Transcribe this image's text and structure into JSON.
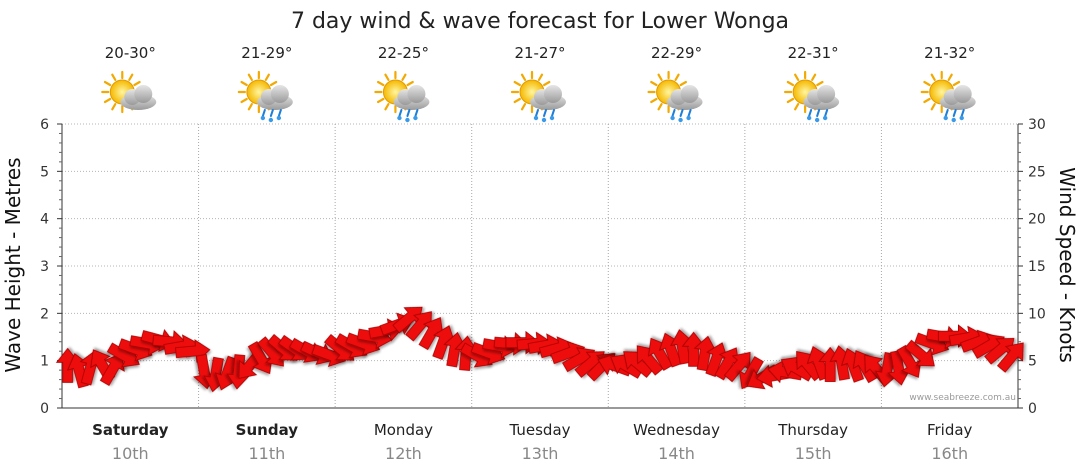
{
  "chart_data": {
    "type": "line",
    "title": "7 day wind & wave forecast for Lower Wonga",
    "ylabel_left": "Wave Height - Metres",
    "ylabel_right": "Wind Speed - Knots",
    "ylim_left": [
      0,
      6
    ],
    "ylim_right": [
      0,
      30
    ],
    "yticks_left": [
      "0",
      "1",
      "2",
      "3",
      "4",
      "5",
      "6"
    ],
    "yticks_right": [
      "0",
      "5",
      "10",
      "15",
      "20",
      "25",
      "30"
    ],
    "grid": true,
    "days": [
      {
        "day": "Saturday",
        "date": "10th",
        "temp": "20-30°",
        "icon": "partly-cloudy-icon",
        "bold": true
      },
      {
        "day": "Sunday",
        "date": "11th",
        "temp": "21-29°",
        "icon": "partly-cloudy-showers-icon",
        "bold": true
      },
      {
        "day": "Monday",
        "date": "12th",
        "temp": "22-25°",
        "icon": "partly-cloudy-showers-icon",
        "bold": false
      },
      {
        "day": "Tuesday",
        "date": "13th",
        "temp": "21-27°",
        "icon": "partly-cloudy-showers-icon",
        "bold": false
      },
      {
        "day": "Wednesday",
        "date": "14th",
        "temp": "22-29°",
        "icon": "partly-cloudy-showers-icon",
        "bold": false
      },
      {
        "day": "Thursday",
        "date": "15th",
        "temp": "22-31°",
        "icon": "partly-cloudy-showers-icon",
        "bold": false
      },
      {
        "day": "Friday",
        "date": "16th",
        "temp": "21-32°",
        "icon": "partly-cloudy-showers-icon",
        "bold": false
      }
    ],
    "series": [
      {
        "name": "Wind Speed",
        "unit": "knots",
        "color": "#ee1111",
        "values": [
          4.5,
          4.0,
          4.3,
          4.6,
          4.2,
          5.5,
          6.2,
          6.8,
          7.2,
          7.0,
          6.5,
          6.0,
          3.8,
          3.5,
          3.6,
          3.8,
          4.5,
          5.2,
          5.8,
          6.2,
          6.2,
          6.0,
          5.8,
          5.6,
          6.2,
          6.5,
          6.8,
          7.5,
          8.2,
          8.8,
          9.5,
          8.8,
          8.0,
          7.0,
          6.2,
          5.8,
          5.5,
          5.8,
          6.5,
          6.8,
          6.9,
          6.8,
          6.6,
          6.3,
          5.8,
          5.2,
          4.8,
          4.5,
          4.5,
          4.5,
          4.8,
          5.2,
          5.8,
          6.2,
          6.5,
          6.2,
          5.8,
          5.2,
          4.8,
          4.5,
          3.6,
          3.2,
          3.4,
          3.8,
          4.2,
          4.6,
          4.8,
          4.6,
          4.8,
          4.6,
          4.5,
          4.2,
          4.0,
          4.2,
          4.8,
          5.6,
          6.8,
          7.5,
          7.6,
          7.4,
          7.0,
          6.6,
          6.2,
          5.5
        ],
        "directions_deg": [
          270,
          255,
          285,
          240,
          300,
          30,
          20,
          10,
          15,
          5,
          350,
          355,
          80,
          100,
          110,
          95,
          130,
          60,
          50,
          40,
          35,
          30,
          25,
          20,
          40,
          30,
          20,
          10,
          350,
          340,
          320,
          310,
          300,
          290,
          280,
          275,
          30,
          20,
          10,
          5,
          0,
          355,
          350,
          345,
          340,
          330,
          320,
          315,
          200,
          210,
          220,
          230,
          240,
          250,
          260,
          270,
          280,
          290,
          300,
          310,
          120,
          150,
          170,
          190,
          210,
          230,
          250,
          270,
          260,
          250,
          240,
          230,
          100,
          80,
          60,
          40,
          20,
          10,
          0,
          350,
          340,
          330,
          320,
          310
        ]
      }
    ]
  },
  "credit": "www.seabreeze.com.au"
}
